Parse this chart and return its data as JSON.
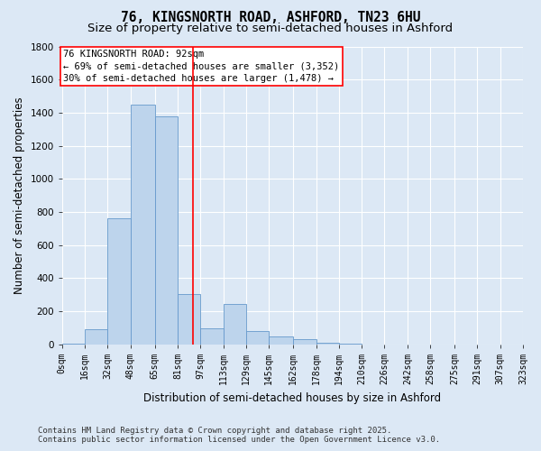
{
  "title_line1": "76, KINGSNORTH ROAD, ASHFORD, TN23 6HU",
  "title_line2": "Size of property relative to semi-detached houses in Ashford",
  "xlabel": "Distribution of semi-detached houses by size in Ashford",
  "ylabel": "Number of semi-detached properties",
  "annotation_title": "76 KINGSNORTH ROAD: 92sqm",
  "annotation_line1": "← 69% of semi-detached houses are smaller (3,352)",
  "annotation_line2": "30% of semi-detached houses are larger (1,478) →",
  "footer_line1": "Contains HM Land Registry data © Crown copyright and database right 2025.",
  "footer_line2": "Contains public sector information licensed under the Open Government Licence v3.0.",
  "bin_edges": [
    0,
    16,
    32,
    48,
    65,
    81,
    97,
    113,
    129,
    145,
    162,
    178,
    194,
    210,
    226,
    242,
    258,
    275,
    291,
    307,
    323
  ],
  "bar_heights": [
    5,
    90,
    760,
    1450,
    1380,
    305,
    100,
    245,
    80,
    50,
    30,
    10,
    5,
    0,
    0,
    0,
    0,
    0,
    0,
    0
  ],
  "tick_labels": [
    "0sqm",
    "16sqm",
    "32sqm",
    "48sqm",
    "65sqm",
    "81sqm",
    "97sqm",
    "113sqm",
    "129sqm",
    "145sqm",
    "162sqm",
    "178sqm",
    "194sqm",
    "210sqm",
    "226sqm",
    "242sqm",
    "258sqm",
    "275sqm",
    "291sqm",
    "307sqm",
    "323sqm"
  ],
  "tick_positions": [
    0,
    16,
    32,
    48,
    65,
    81,
    97,
    113,
    129,
    145,
    162,
    178,
    194,
    210,
    226,
    242,
    258,
    275,
    291,
    307,
    323
  ],
  "bar_color": "#bdd4ec",
  "bar_edge_color": "#6699cc",
  "red_line_x": 92,
  "ylim": [
    0,
    1800
  ],
  "yticks": [
    0,
    200,
    400,
    600,
    800,
    1000,
    1200,
    1400,
    1600,
    1800
  ],
  "bg_color": "#dce8f5",
  "plot_bg_color": "#dce8f5",
  "grid_color": "#ffffff",
  "title_fontsize": 10.5,
  "subtitle_fontsize": 9.5,
  "label_fontsize": 8.5,
  "tick_fontsize": 7,
  "annotation_fontsize": 7.5,
  "footer_fontsize": 6.5
}
